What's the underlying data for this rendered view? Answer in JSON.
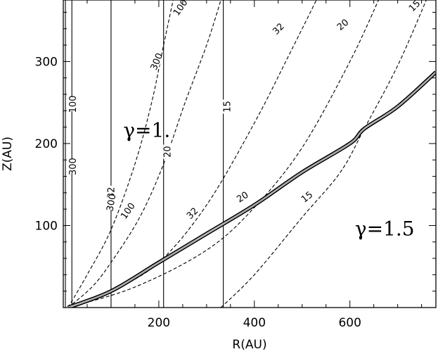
{
  "chart_data": {
    "type": "line",
    "xlabel": "R(AU)",
    "ylabel": "Z(AU)",
    "xlim": [
      0,
      780
    ],
    "ylim": [
      0,
      375
    ],
    "grid": false,
    "x_ticks": [
      200,
      400,
      600
    ],
    "y_ticks": [
      100,
      200,
      300
    ],
    "x_tick_labels": [
      "200",
      "400",
      "600"
    ],
    "y_tick_labels": [
      "100",
      "200",
      "300"
    ],
    "annotations": [
      {
        "text": "γ=1.",
        "x": 155,
        "y": 215
      },
      {
        "text": "γ=1.5",
        "x": 640,
        "y": 95
      }
    ],
    "series": [
      {
        "style": "solid",
        "label": "100",
        "points": [
          [
            18,
            0
          ],
          [
            18,
            375
          ]
        ]
      },
      {
        "style": "solid",
        "label": "32",
        "points": [
          [
            100,
            0
          ],
          [
            100,
            375
          ]
        ]
      },
      {
        "style": "solid",
        "label": "20",
        "points": [
          [
            210,
            0
          ],
          [
            210,
            375
          ]
        ]
      },
      {
        "style": "solid",
        "label": "15",
        "points": [
          [
            335,
            0
          ],
          [
            335,
            375
          ]
        ]
      },
      {
        "style": "dashed",
        "label": "300",
        "points": [
          [
            10,
            0
          ],
          [
            50,
            40
          ],
          [
            100,
            95
          ],
          [
            150,
            175
          ],
          [
            185,
            250
          ],
          [
            210,
            320
          ],
          [
            230,
            375
          ]
        ]
      },
      {
        "style": "dashed",
        "label": "100",
        "points": [
          [
            10,
            0
          ],
          [
            60,
            25
          ],
          [
            100,
            55
          ],
          [
            160,
            110
          ],
          [
            210,
            175
          ],
          [
            255,
            250
          ],
          [
            300,
            320
          ],
          [
            330,
            375
          ]
        ]
      },
      {
        "style": "dashed",
        "label": "32",
        "points": [
          [
            10,
            0
          ],
          [
            100,
            20
          ],
          [
            200,
            55
          ],
          [
            300,
            125
          ],
          [
            400,
            225
          ],
          [
            470,
            305
          ],
          [
            530,
            375
          ]
        ]
      },
      {
        "style": "dashed",
        "label": "20",
        "points": [
          [
            10,
            0
          ],
          [
            150,
            25
          ],
          [
            300,
            70
          ],
          [
            400,
            122
          ],
          [
            500,
            195
          ],
          [
            600,
            300
          ],
          [
            660,
            375
          ]
        ]
      },
      {
        "style": "dashed",
        "label": "15",
        "points": [
          [
            330,
            0
          ],
          [
            400,
            40
          ],
          [
            500,
            110
          ],
          [
            580,
            165
          ],
          [
            630,
            218
          ],
          [
            700,
            295
          ],
          [
            760,
            375
          ]
        ]
      },
      {
        "style": "thick",
        "label": "",
        "points": [
          [
            10,
            0
          ],
          [
            100,
            20
          ],
          [
            200,
            55
          ],
          [
            300,
            90
          ],
          [
            400,
            125
          ],
          [
            500,
            165
          ],
          [
            600,
            200
          ],
          [
            630,
            218
          ],
          [
            700,
            245
          ],
          [
            780,
            287
          ]
        ]
      }
    ],
    "curve_labels": [
      {
        "text": "300",
        "x": 20,
        "y": 172,
        "rotate": -90
      },
      {
        "text": "100",
        "x": 20,
        "y": 248,
        "rotate": -90
      },
      {
        "text": "32",
        "x": 100,
        "y": 140,
        "rotate": -90
      },
      {
        "text": "300",
        "x": 100,
        "y": 128,
        "rotate": -80
      },
      {
        "text": "300",
        "x": 195,
        "y": 300,
        "rotate": -68
      },
      {
        "text": "100",
        "x": 135,
        "y": 118,
        "rotate": -55
      },
      {
        "text": "100",
        "x": 245,
        "y": 366,
        "rotate": -55
      },
      {
        "text": "20",
        "x": 218,
        "y": 190,
        "rotate": -90
      },
      {
        "text": "15",
        "x": 343,
        "y": 245,
        "rotate": -90
      },
      {
        "text": "32",
        "x": 270,
        "y": 115,
        "rotate": -45
      },
      {
        "text": "32",
        "x": 450,
        "y": 340,
        "rotate": -45
      },
      {
        "text": "20",
        "x": 375,
        "y": 135,
        "rotate": -33
      },
      {
        "text": "20",
        "x": 585,
        "y": 345,
        "rotate": -40
      },
      {
        "text": "15",
        "x": 510,
        "y": 135,
        "rotate": -38
      },
      {
        "text": "15",
        "x": 735,
        "y": 368,
        "rotate": -45
      }
    ]
  }
}
